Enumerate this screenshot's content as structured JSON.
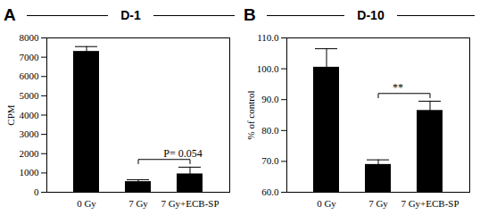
{
  "chart_data": [
    {
      "type": "bar",
      "panel_label": "A",
      "title": "D-1",
      "y_label": "CPM",
      "categories": [
        "0 Gy",
        "7 Gy",
        "7 Gy+ECB-SP"
      ],
      "values": [
        7300,
        550,
        950
      ],
      "errors": [
        250,
        100,
        350
      ],
      "color": "#000000",
      "ylim": [
        0,
        8000
      ],
      "yticks": [
        0,
        1000,
        2000,
        3000,
        4000,
        5000,
        6000,
        7000,
        8000
      ],
      "annotations": [
        {
          "text": "P= 0.054",
          "from": "7 Gy",
          "to": "7 Gy+ECB-SP"
        }
      ]
    },
    {
      "type": "bar",
      "panel_label": "B",
      "title": "D-10",
      "y_label": "% of control",
      "categories": [
        "0 Gy",
        "7 Gy",
        "7 Gy+ECB-SP"
      ],
      "values": [
        100.5,
        69,
        86.5
      ],
      "errors": [
        6,
        1.5,
        3
      ],
      "color": "#000000",
      "ylim": [
        60,
        110
      ],
      "yticks": [
        {
          "value": 60,
          "label": "60.0"
        },
        {
          "value": 70,
          "label": "70.0"
        },
        {
          "value": 80,
          "label": "80.0"
        },
        {
          "value": 90,
          "label": "90.0"
        },
        {
          "value": 100,
          "label": "100.0"
        },
        {
          "value": 110,
          "label": "110.0"
        }
      ],
      "annotations": [
        {
          "text": "**",
          "from": "7 Gy",
          "to": "7 Gy+ECB-SP"
        }
      ]
    }
  ]
}
